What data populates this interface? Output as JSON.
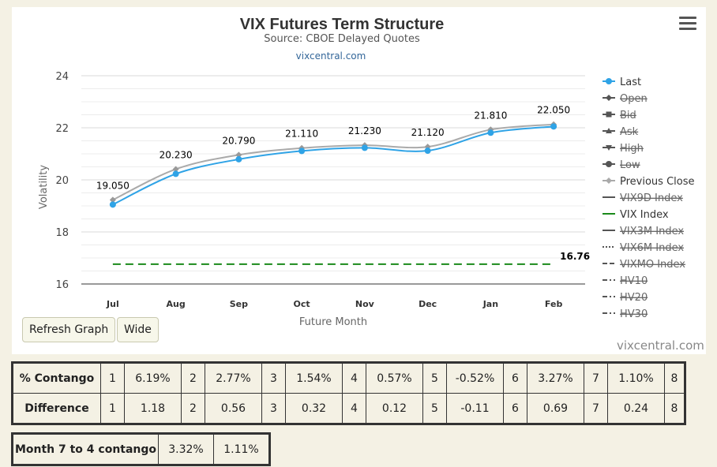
{
  "chart_data": {
    "type": "line",
    "title": "VIX Futures Term Structure",
    "subtitle": "Source: CBOE Delayed Quotes",
    "link_text": "vixcentral.com",
    "xlabel": "Future Month",
    "ylabel": "Volatility",
    "categories": [
      "Jul",
      "Aug",
      "Sep",
      "Oct",
      "Nov",
      "Dec",
      "Jan",
      "Feb"
    ],
    "ylim": [
      16,
      24
    ],
    "yticks": [
      "16",
      "18",
      "20",
      "22",
      "24"
    ],
    "grid": true,
    "legend_position": "right",
    "series": [
      {
        "name": "Last",
        "values": [
          19.05,
          20.23,
          20.79,
          21.11,
          21.23,
          21.12,
          21.81,
          22.05
        ],
        "color": "#2fa3e6",
        "labels": [
          "19.050",
          "20.230",
          "20.790",
          "21.110",
          "21.230",
          "21.120",
          "21.810",
          "22.050"
        ],
        "visible": true
      },
      {
        "name": "Previous Close",
        "values": [
          19.23,
          20.41,
          20.96,
          21.22,
          21.33,
          21.27,
          21.93,
          22.13
        ],
        "color": "#aaaaaa",
        "visible": true
      },
      {
        "name": "VIX Index",
        "values": [
          16.76,
          16.76,
          16.76,
          16.76,
          16.76,
          16.76,
          16.76,
          16.76
        ],
        "color": "#1a8a1a",
        "end_label": "16.76",
        "visible": true
      }
    ]
  },
  "legend": [
    {
      "name": "Last",
      "visible": true,
      "color": "#2fa3e6",
      "symbol": "circle-line"
    },
    {
      "name": "Open",
      "visible": false,
      "color": "#555555",
      "symbol": "diamond-line"
    },
    {
      "name": "Bid",
      "visible": false,
      "color": "#555555",
      "symbol": "square-line"
    },
    {
      "name": "Ask",
      "visible": false,
      "color": "#555555",
      "symbol": "triangle-line"
    },
    {
      "name": "High",
      "visible": false,
      "color": "#555555",
      "symbol": "triangle-down-line"
    },
    {
      "name": "Low",
      "visible": false,
      "color": "#555555",
      "symbol": "circle-line"
    },
    {
      "name": "Previous Close",
      "visible": true,
      "color": "#aaaaaa",
      "symbol": "diamond-line"
    },
    {
      "name": "VIX9D Index",
      "visible": false,
      "color": "#555555",
      "symbol": "line"
    },
    {
      "name": "VIX Index",
      "visible": true,
      "color": "#1a8a1a",
      "symbol": "line"
    },
    {
      "name": "VIX3M Index",
      "visible": false,
      "color": "#555555",
      "symbol": "line"
    },
    {
      "name": "VIX6M Index",
      "visible": false,
      "color": "#555555",
      "symbol": "dotted"
    },
    {
      "name": "VIXMO Index",
      "visible": false,
      "color": "#555555",
      "symbol": "dashed"
    },
    {
      "name": "HV10",
      "visible": false,
      "color": "#555555",
      "symbol": "dashdot"
    },
    {
      "name": "HV20",
      "visible": false,
      "color": "#555555",
      "symbol": "dashdot"
    },
    {
      "name": "HV30",
      "visible": false,
      "color": "#555555",
      "symbol": "dashdot"
    }
  ],
  "buttons": {
    "refresh": "Refresh Graph",
    "wide": "Wide"
  },
  "watermark": "vixcentral.com",
  "contango_table": {
    "rows": [
      {
        "label": "% Contango",
        "cells": [
          "1",
          "6.19%",
          "2",
          "2.77%",
          "3",
          "1.54%",
          "4",
          "0.57%",
          "5",
          "-0.52%",
          "6",
          "3.27%",
          "7",
          "1.10%",
          "8"
        ]
      },
      {
        "label": "Difference",
        "cells": [
          "1",
          "1.18",
          "2",
          "0.56",
          "3",
          "0.32",
          "4",
          "0.12",
          "5",
          "-0.11",
          "6",
          "0.69",
          "7",
          "0.24",
          "8"
        ]
      }
    ]
  },
  "month_table": {
    "label": "Month 7 to 4 contango",
    "values": [
      "3.32%",
      "1.11%"
    ]
  }
}
